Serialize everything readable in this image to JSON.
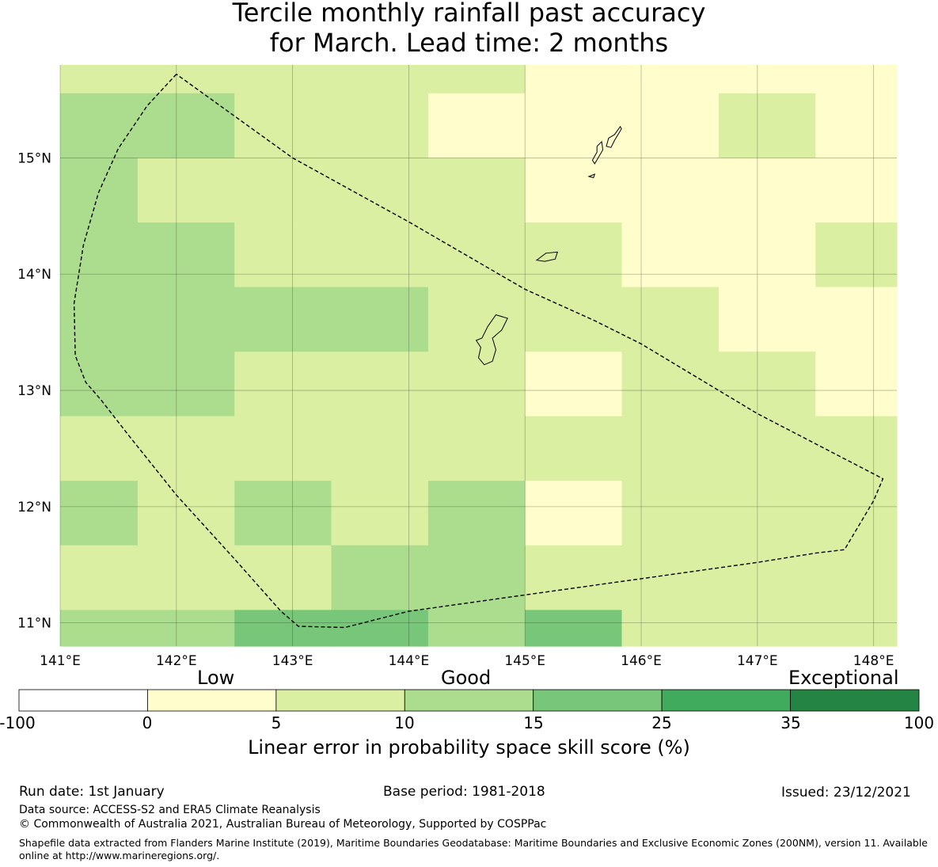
{
  "title_line1": "Tercile monthly rainfall past accuracy",
  "title_line2": "for March. Lead time: 2 months",
  "map": {
    "lon_range": [
      141.0,
      148.2
    ],
    "lat_range": [
      10.8,
      15.8
    ],
    "x_ticks": [
      {
        "value": 141,
        "label": "141°E"
      },
      {
        "value": 142,
        "label": "142°E"
      },
      {
        "value": 143,
        "label": "143°E"
      },
      {
        "value": 144,
        "label": "144°E"
      },
      {
        "value": 145,
        "label": "145°E"
      },
      {
        "value": 146,
        "label": "146°E"
      },
      {
        "value": 147,
        "label": "147°E"
      },
      {
        "value": 148,
        "label": "148°E"
      }
    ],
    "y_ticks": [
      {
        "value": 15,
        "label": "15°N"
      },
      {
        "value": 14,
        "label": "14°N"
      },
      {
        "value": 13,
        "label": "13°N"
      },
      {
        "value": 12,
        "label": "12°N"
      },
      {
        "value": 11,
        "label": "11°N"
      }
    ],
    "lon_edges": [
      141.0,
      141.667,
      142.5,
      143.333,
      144.167,
      145.0,
      145.833,
      146.667,
      147.5,
      148.2
    ],
    "lat_edges": [
      15.8,
      15.556,
      15.0,
      14.444,
      13.889,
      13.333,
      12.778,
      12.222,
      11.667,
      11.111,
      10.8
    ],
    "cells": [
      [
        1,
        1,
        1,
        1,
        1,
        0,
        0,
        0,
        0
      ],
      [
        2,
        2,
        1,
        1,
        0,
        0,
        0,
        1,
        0
      ],
      [
        2,
        1,
        1,
        1,
        1,
        0,
        0,
        0,
        0
      ],
      [
        2,
        2,
        1,
        1,
        1,
        1,
        0,
        0,
        1
      ],
      [
        2,
        2,
        2,
        2,
        1,
        1,
        1,
        0,
        0
      ],
      [
        2,
        2,
        1,
        1,
        1,
        0,
        1,
        1,
        0
      ],
      [
        1,
        1,
        1,
        1,
        1,
        1,
        1,
        1,
        1
      ],
      [
        2,
        1,
        2,
        1,
        2,
        0,
        1,
        1,
        1
      ],
      [
        1,
        1,
        1,
        2,
        2,
        1,
        1,
        1,
        1
      ],
      [
        2,
        2,
        3,
        3,
        2,
        3,
        1,
        1,
        1
      ]
    ],
    "eez_boundary": [
      [
        142.0,
        15.72
      ],
      [
        141.75,
        15.45
      ],
      [
        141.5,
        15.08
      ],
      [
        141.33,
        14.7
      ],
      [
        141.2,
        14.25
      ],
      [
        141.12,
        13.75
      ],
      [
        141.13,
        13.3
      ],
      [
        141.22,
        13.07
      ],
      [
        141.35,
        12.92
      ],
      [
        141.6,
        12.6
      ],
      [
        142.0,
        12.1
      ],
      [
        142.5,
        11.55
      ],
      [
        142.9,
        11.1
      ],
      [
        143.05,
        10.97
      ],
      [
        143.45,
        10.96
      ],
      [
        144.0,
        11.1
      ],
      [
        145.0,
        11.24
      ],
      [
        146.0,
        11.38
      ],
      [
        147.0,
        11.52
      ],
      [
        147.5,
        11.6
      ],
      [
        147.75,
        11.63
      ],
      [
        148.0,
        12.05
      ],
      [
        148.08,
        12.24
      ],
      [
        147.0,
        12.8
      ],
      [
        146.0,
        13.4
      ],
      [
        145.6,
        13.6
      ],
      [
        145.0,
        13.87
      ],
      [
        144.0,
        14.45
      ],
      [
        143.0,
        15.0
      ],
      [
        142.0,
        15.72
      ]
    ],
    "islands": [
      [
        [
          144.63,
          13.45
        ],
        [
          144.68,
          13.55
        ],
        [
          144.75,
          13.65
        ],
        [
          144.85,
          13.62
        ],
        [
          144.8,
          13.52
        ],
        [
          144.72,
          13.45
        ],
        [
          144.75,
          13.35
        ],
        [
          144.72,
          13.25
        ],
        [
          144.65,
          13.22
        ],
        [
          144.6,
          13.28
        ],
        [
          144.62,
          13.37
        ],
        [
          144.58,
          13.43
        ]
      ],
      [
        [
          145.1,
          14.12
        ],
        [
          145.18,
          14.18
        ],
        [
          145.28,
          14.19
        ],
        [
          145.26,
          14.13
        ],
        [
          145.17,
          14.11
        ]
      ],
      [
        [
          145.58,
          14.98
        ],
        [
          145.62,
          15.05
        ],
        [
          145.62,
          15.1
        ],
        [
          145.66,
          15.14
        ],
        [
          145.67,
          15.07
        ],
        [
          145.63,
          15.0
        ],
        [
          145.6,
          14.95
        ]
      ],
      [
        [
          145.7,
          15.1
        ],
        [
          145.72,
          15.17
        ],
        [
          145.77,
          15.2
        ],
        [
          145.82,
          15.27
        ],
        [
          145.83,
          15.25
        ],
        [
          145.77,
          15.15
        ],
        [
          145.74,
          15.09
        ]
      ],
      [
        [
          145.55,
          14.84
        ],
        [
          145.6,
          14.86
        ],
        [
          145.59,
          14.83
        ]
      ]
    ]
  },
  "colorbar": {
    "categories": [
      "Low",
      "Good",
      "Exceptional"
    ],
    "ticks": [
      "-100",
      "0",
      "5",
      "10",
      "15",
      "25",
      "35",
      "100"
    ],
    "colors": [
      "#ffffff",
      "#fefdcb",
      "#daefa2",
      "#acdd8e",
      "#78c679",
      "#41ab5d",
      "#238443"
    ],
    "title": "Linear error in probability space skill score (%)"
  },
  "footer": {
    "run_date": "Run date: 1st January",
    "base_period": "Base period: 1981-2018",
    "issued": "Issued: 23/12/2021",
    "data_source": "Data source: ACCESS-S2 and ERA5 Climate Reanalysis",
    "copyright": "© Commonwealth of Australia 2021, Australian Bureau of Meteorology, Supported by COSPPac",
    "shapefile": "Shapefile data extracted from Flanders Marine Institute (2019), Maritime Boundaries Geodatabase: Maritime Boundaries and Exclusive Economic Zones (200NM), version 11. Available online at http://www.marineregions.org/."
  }
}
